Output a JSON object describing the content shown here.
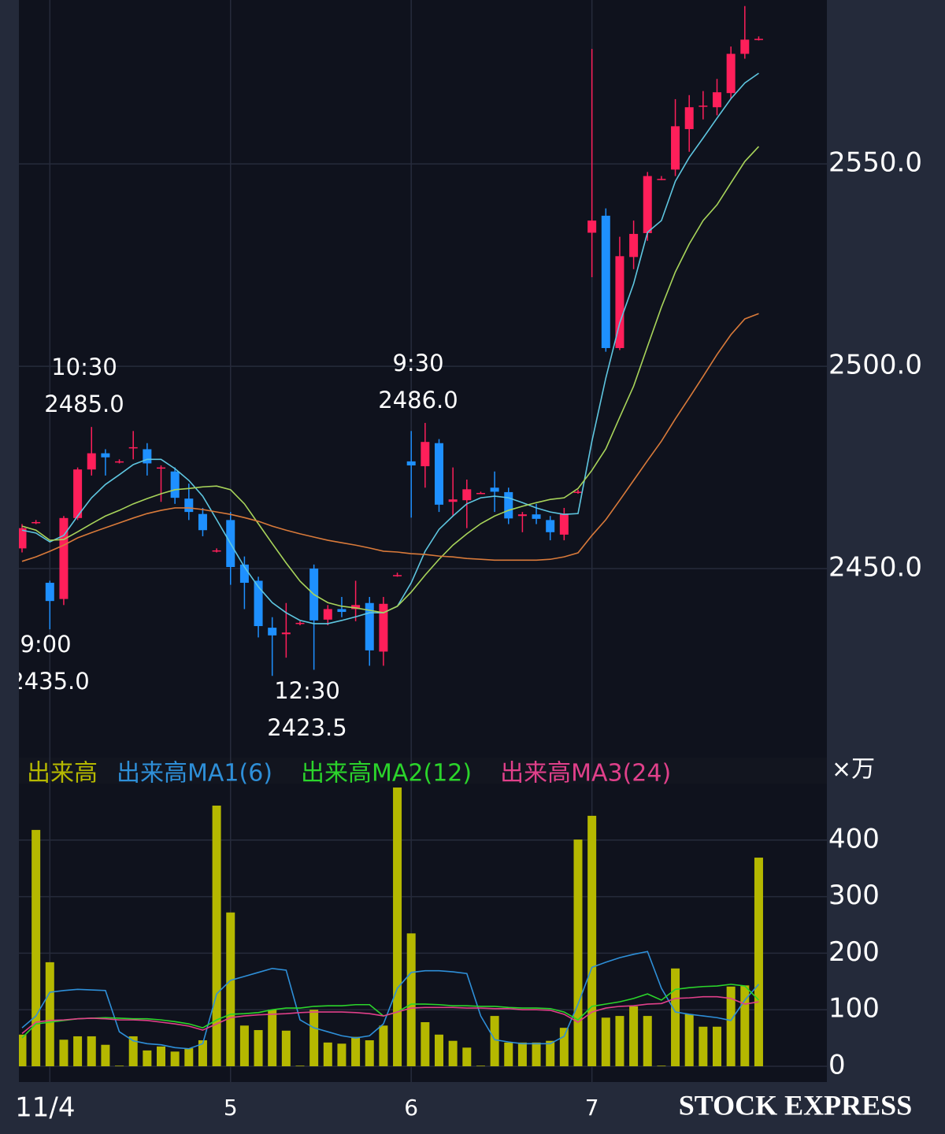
{
  "chart_data": [
    {
      "type": "candlestick",
      "open": [
        2455,
        2461.5,
        2446.5,
        2442.5,
        2462.5,
        2474.5,
        2478.5,
        2476.5,
        2480,
        2479.5,
        2475,
        2474,
        2467.3,
        2463.5,
        2454.5,
        2462,
        2451,
        2447,
        2435.4,
        2433.8,
        2436.6,
        2450,
        2437.4,
        2440,
        2440,
        2441.5,
        2429.5,
        2448.4,
        2476.5,
        2475.3,
        2481,
        2466.5,
        2466.9,
        2468.7,
        2470,
        2468.9,
        2463,
        2463.4,
        2462,
        2458.4,
        2469,
        2533,
        2537.2,
        2504.5,
        2527,
        2532.9,
        2546.3,
        2548.6,
        2558.6,
        2564.4,
        2564,
        2567.5,
        2577.2,
        2580.9
      ],
      "high": [
        2461,
        2462,
        2447,
        2463,
        2475,
        2485,
        2479.5,
        2477,
        2484,
        2481,
        2475.5,
        2475,
        2471,
        2465,
        2455,
        2464,
        2453,
        2448,
        2438,
        2441.5,
        2437,
        2451,
        2441,
        2443,
        2447,
        2443,
        2443,
        2449,
        2484,
        2486,
        2482,
        2475,
        2472,
        2469,
        2474,
        2470,
        2464,
        2466,
        2463,
        2465,
        2469.5,
        2578.4,
        2539,
        2532,
        2536,
        2548,
        2547,
        2566,
        2567,
        2568,
        2571,
        2579,
        2589,
        2581.5
      ],
      "low": [
        2454,
        2461,
        2435,
        2441,
        2462,
        2473,
        2473,
        2476,
        2477,
        2473,
        2466.5,
        2466,
        2462,
        2458,
        2454,
        2446,
        2440,
        2433,
        2423.5,
        2428,
        2436,
        2425,
        2436,
        2438,
        2437,
        2426,
        2426,
        2448,
        2462.6,
        2470,
        2464,
        2463,
        2460,
        2468.5,
        2464,
        2461,
        2459,
        2461,
        2457,
        2457,
        2468.5,
        2522,
        2503.6,
        2504,
        2524,
        2531,
        2546,
        2547,
        2553,
        2561,
        2562,
        2566,
        2576,
        2580.5
      ],
      "close": [
        2460,
        2461.5,
        2442,
        2462.5,
        2474.5,
        2478.5,
        2477.5,
        2476.5,
        2480,
        2476,
        2475,
        2467.5,
        2464,
        2459.5,
        2454.5,
        2450.4,
        2446.5,
        2435.8,
        2433.5,
        2434.2,
        2436.6,
        2437.2,
        2440,
        2439.3,
        2441,
        2429.8,
        2441.3,
        2448.4,
        2475.5,
        2481.3,
        2465.8,
        2467.1,
        2469.6,
        2468.7,
        2469,
        2462.4,
        2463.4,
        2462.3,
        2459,
        2463.6,
        2469,
        2536,
        2504.5,
        2527.2,
        2532.7,
        2547,
        2546.3,
        2559.3,
        2564,
        2564.4,
        2567.7,
        2577.2,
        2580.7,
        2580.9
      ],
      "up_color": "#ff1f5a",
      "down_color": "#1e90ff",
      "series": [
        {
          "color": "#5ec6e0",
          "values": [
            2459.5,
            2458.8,
            2456.6,
            2458.2,
            2463.0,
            2467.5,
            2470.8,
            2473.2,
            2475.7,
            2477.0,
            2477.0,
            2474.7,
            2471.8,
            2467.9,
            2462.1,
            2456.2,
            2450.4,
            2445.5,
            2441.6,
            2439.1,
            2437.2,
            2436.4,
            2436.4,
            2437.2,
            2438.1,
            2439.1,
            2439.1,
            2440.7,
            2446.5,
            2454.3,
            2459.7,
            2463.0,
            2466.0,
            2467.5,
            2467.9,
            2467.5,
            2466.3,
            2465.0,
            2464.0,
            2463.4,
            2463.6,
            2481.5,
            2497.1,
            2510.7,
            2520.4,
            2533.1,
            2536.0,
            2545.7,
            2551.6,
            2556.4,
            2561.3,
            2566.1,
            2570.0,
            2572.4
          ]
        },
        {
          "color": "#a8d45a",
          "values": [
            2460.5,
            2459.5,
            2457.0,
            2457.2,
            2459.1,
            2461.1,
            2463.0,
            2464.4,
            2466.0,
            2467.3,
            2468.5,
            2469.5,
            2469.8,
            2470.2,
            2470.4,
            2469.5,
            2466.0,
            2461.1,
            2456.2,
            2451.4,
            2446.9,
            2443.6,
            2441.6,
            2440.7,
            2440.3,
            2439.7,
            2439.1,
            2440.7,
            2444.2,
            2448.4,
            2452.3,
            2455.8,
            2458.6,
            2461.1,
            2463.0,
            2464.4,
            2465.4,
            2466.3,
            2467.1,
            2467.5,
            2469.8,
            2474.3,
            2479.6,
            2487.4,
            2495.1,
            2504.9,
            2514.6,
            2523.3,
            2530.2,
            2536.0,
            2539.9,
            2545.3,
            2550.6,
            2554.3
          ]
        },
        {
          "color": "#d97a3a",
          "values": [
            2451.8,
            2452.9,
            2454.3,
            2455.8,
            2457.6,
            2458.9,
            2460.1,
            2461.3,
            2462.5,
            2463.6,
            2464.4,
            2465.0,
            2465.0,
            2464.6,
            2464.0,
            2463.4,
            2462.6,
            2461.7,
            2460.5,
            2459.5,
            2458.6,
            2457.8,
            2457.0,
            2456.4,
            2455.8,
            2455.1,
            2454.3,
            2454.1,
            2453.7,
            2453.5,
            2453.1,
            2452.9,
            2452.5,
            2452.3,
            2452.1,
            2452.1,
            2452.1,
            2452.1,
            2452.3,
            2452.9,
            2453.9,
            2458.2,
            2462.1,
            2466.9,
            2471.8,
            2476.7,
            2481.5,
            2487.0,
            2492.2,
            2497.5,
            2502.9,
            2507.8,
            2511.7,
            2513.0
          ]
        }
      ],
      "ylim": [
        2403.7,
        2590.5
      ],
      "yticks": [
        {
          "value": 2450,
          "label": "2450.0"
        },
        {
          "value": 2500,
          "label": "2500.0"
        },
        {
          "value": 2550,
          "label": "2550.0"
        }
      ],
      "grid": true,
      "annotations": [
        {
          "time": "10:30",
          "price": "2485.0"
        },
        {
          "time": "9:30",
          "price": "2486.0"
        },
        {
          "time": "9:00",
          "price": "2435.0"
        },
        {
          "time": "12:30",
          "price": "2423.5"
        }
      ]
    },
    {
      "type": "bar",
      "categories": [
        null,
        null,
        "11/4",
        null,
        null,
        null,
        null,
        null,
        null,
        null,
        null,
        null,
        null,
        null,
        null,
        "5",
        null,
        null,
        null,
        null,
        null,
        null,
        null,
        null,
        null,
        null,
        null,
        null,
        "6",
        null,
        null,
        null,
        null,
        null,
        null,
        null,
        null,
        null,
        null,
        null,
        null,
        "7",
        null,
        null,
        null,
        null,
        null,
        null,
        null,
        null,
        null,
        null,
        null,
        null
      ],
      "unit": "×万",
      "series": [
        {
          "name": "出来高",
          "color": "#b5b800",
          "values": [
            56,
            418,
            184,
            47,
            53,
            53,
            38,
            1,
            53,
            28,
            35,
            26,
            32,
            46,
            461,
            272,
            72,
            64,
            100,
            63,
            1,
            100,
            42,
            40,
            52,
            46,
            72,
            493,
            235,
            78,
            56,
            45,
            33,
            1,
            89,
            42,
            42,
            42,
            45,
            68,
            401,
            443,
            86,
            89,
            106,
            89,
            1,
            173,
            92,
            70,
            70,
            141,
            143,
            369
          ]
        },
        {
          "name": "出来高MA1(6)",
          "color": "#2e8fd8",
          "values": [
            68,
            89,
            131,
            134,
            136,
            135,
            134,
            61,
            45,
            40,
            38,
            33,
            31,
            40,
            128,
            152,
            159,
            166,
            173,
            170,
            82,
            68,
            61,
            54,
            50,
            54,
            75,
            138,
            166,
            169,
            169,
            167,
            164,
            89,
            47,
            43,
            40,
            40,
            40,
            53,
            110,
            175,
            184,
            192,
            198,
            203,
            138,
            96,
            92,
            89,
            86,
            81,
            117,
            145
          ]
        },
        {
          "name": "出来高MA2(12)",
          "color": "#2bd42b",
          "values": [
            50,
            75,
            78,
            81,
            84,
            85,
            86,
            85,
            84,
            84,
            82,
            79,
            75,
            68,
            82,
            92,
            93,
            95,
            100,
            103,
            103,
            106,
            107,
            107,
            109,
            109,
            89,
            96,
            110,
            110,
            109,
            107,
            107,
            106,
            106,
            104,
            103,
            103,
            102,
            96,
            82,
            106,
            110,
            114,
            120,
            128,
            117,
            136,
            139,
            141,
            142,
            145,
            142,
            117
          ]
        },
        {
          "name": "出来高MA3(24)",
          "color": "#e0408a",
          "values": [
            58,
            78,
            81,
            82,
            84,
            85,
            84,
            82,
            82,
            81,
            78,
            75,
            71,
            64,
            75,
            86,
            89,
            91,
            92,
            93,
            95,
            96,
            96,
            96,
            95,
            93,
            89,
            96,
            103,
            104,
            104,
            104,
            103,
            103,
            102,
            102,
            100,
            100,
            99,
            92,
            78,
            96,
            103,
            106,
            107,
            110,
            111,
            120,
            121,
            123,
            123,
            120,
            110,
            114
          ]
        }
      ],
      "ylim": [
        0,
        500
      ],
      "yticks": [
        0,
        100,
        200,
        300,
        400
      ],
      "grid": true,
      "watermark": "STOCK EXPRESS"
    }
  ]
}
